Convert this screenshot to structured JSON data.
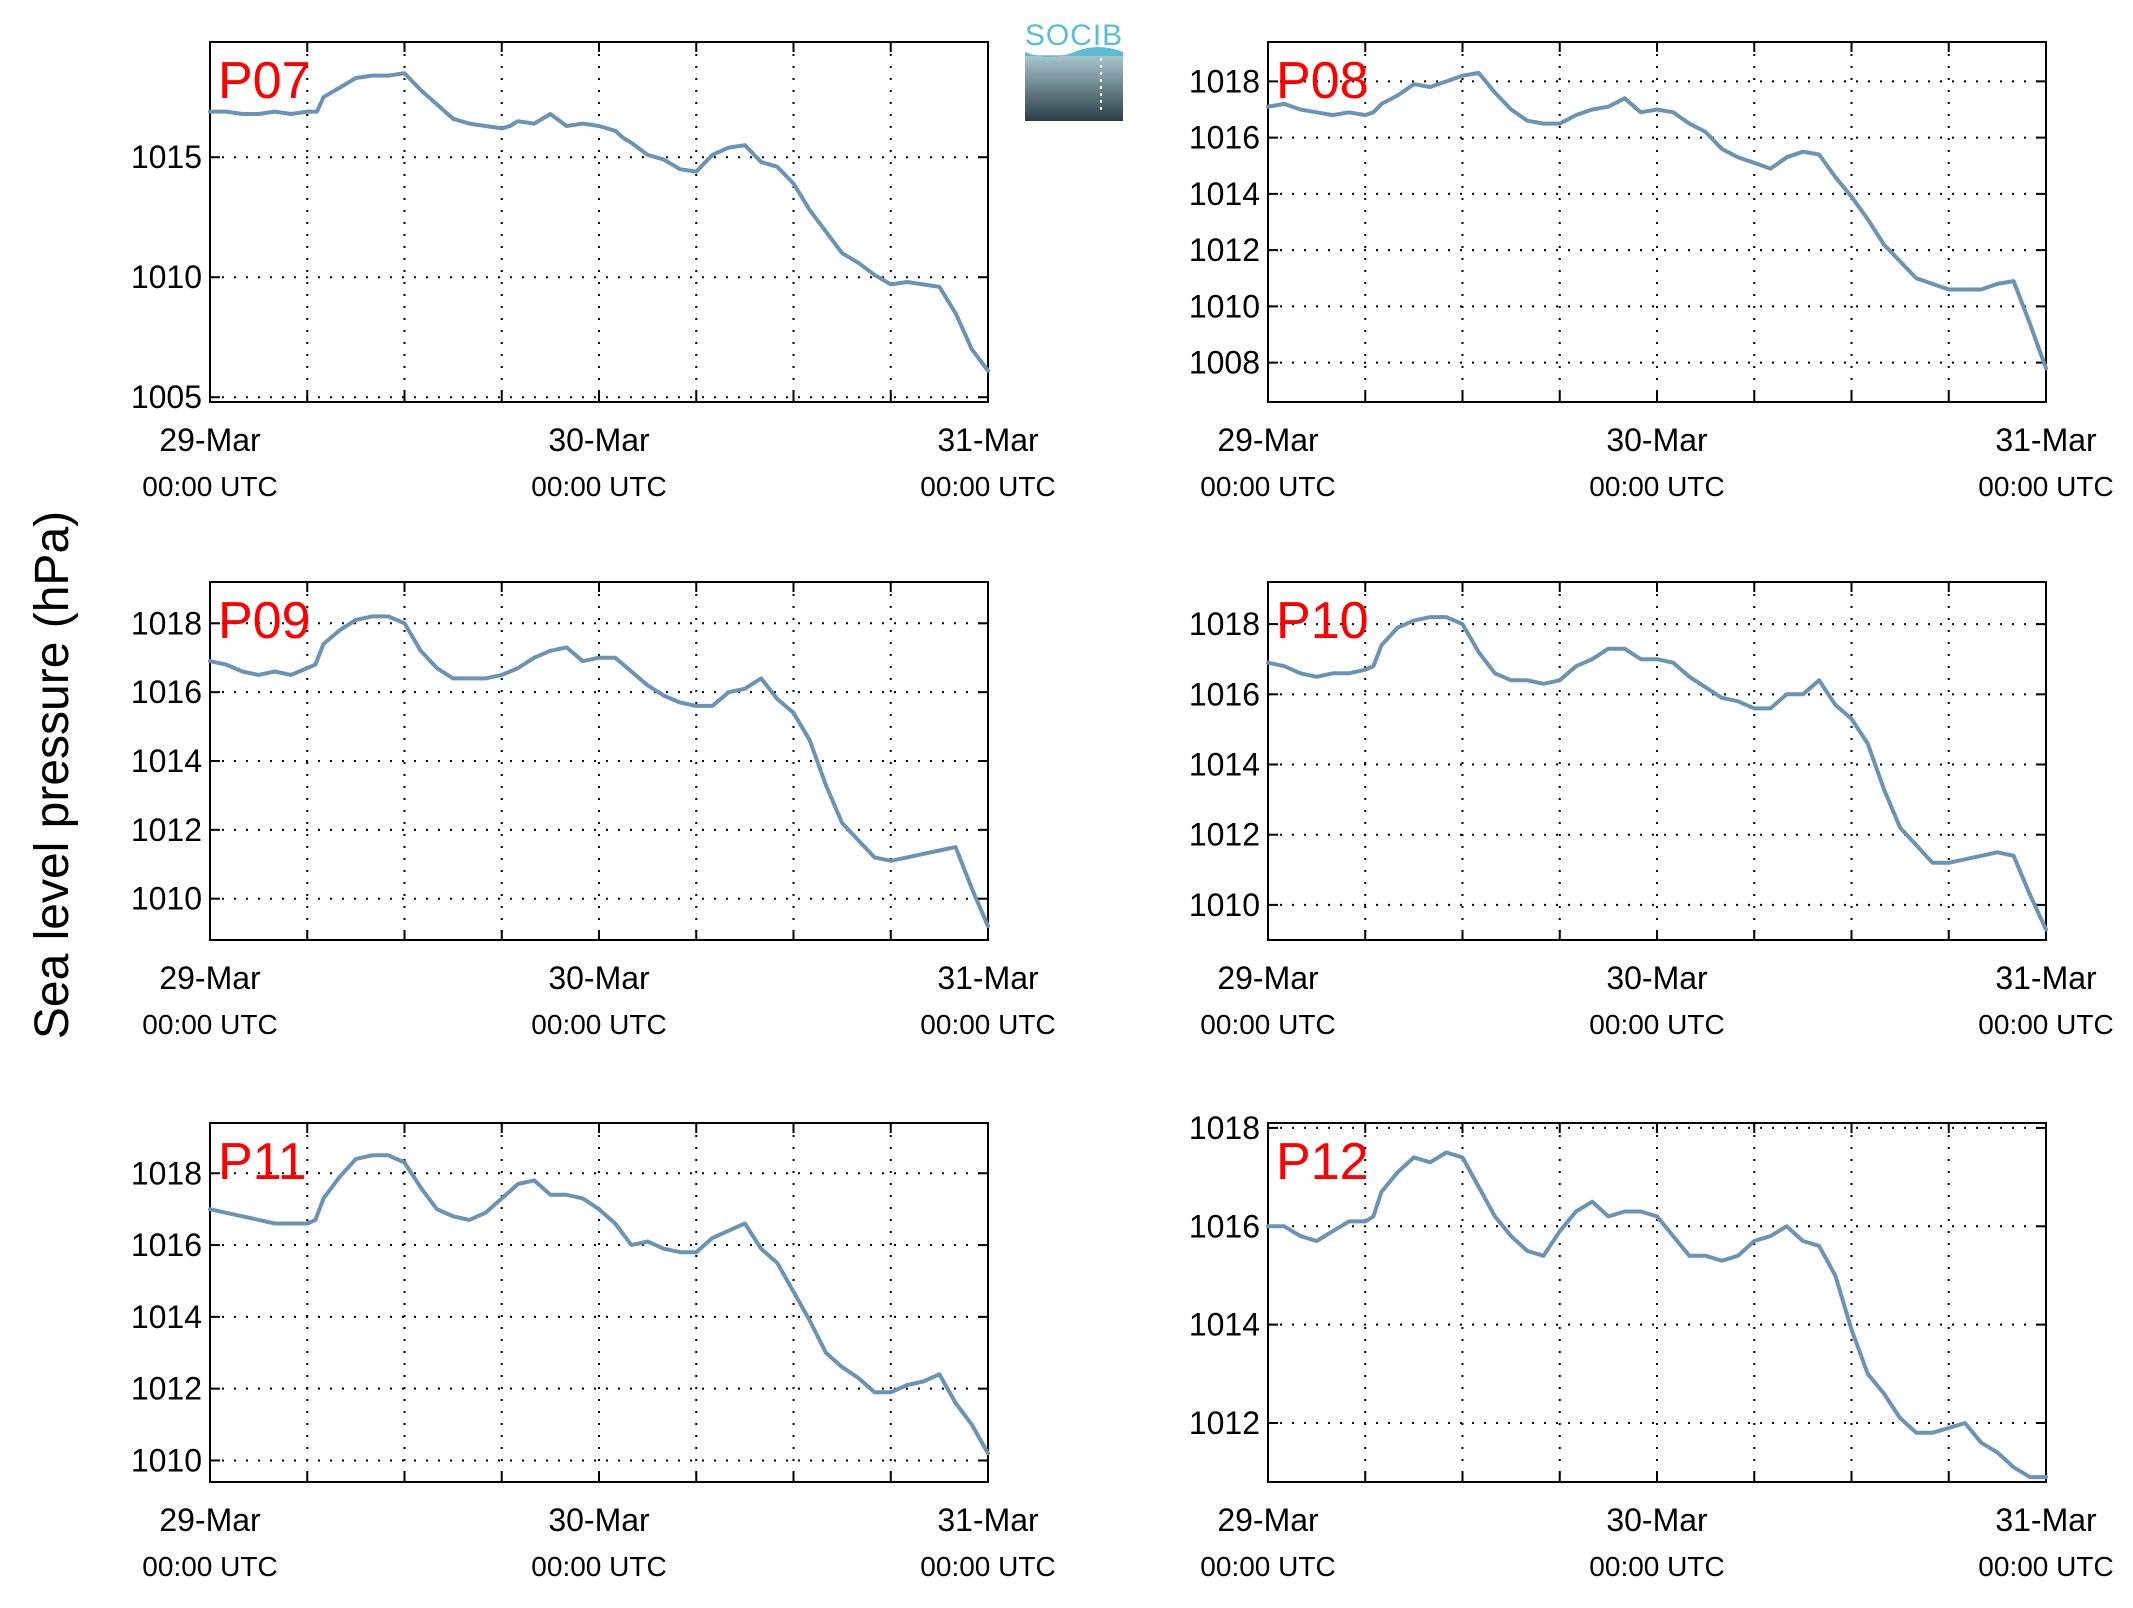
{
  "figure": {
    "ylabel": "Sea level pressure (hPa)",
    "logo": {
      "text": "SOCIB"
    },
    "line_color": "#6b93b5",
    "label_color": "#ff0000"
  },
  "chart_data": [
    {
      "type": "line",
      "label": "P07",
      "ylim": [
        1004.8,
        1019.8
      ],
      "yticks": [
        1005,
        1010,
        1015
      ],
      "xticks": [
        {
          "x": 0,
          "label": "29-Mar",
          "sub": "00:00 UTC"
        },
        {
          "x": 24,
          "label": "30-Mar",
          "sub": "00:00 UTC"
        },
        {
          "x": 48,
          "label": "31-Mar",
          "sub": "00:00 UTC"
        }
      ],
      "xlim": [
        0,
        48
      ],
      "grid": true,
      "series": [
        {
          "x": [
            0,
            1,
            2,
            3,
            4,
            5,
            6,
            6.6,
            7,
            8,
            9,
            10,
            11,
            12,
            13,
            14,
            15,
            16,
            17,
            18,
            18.5,
            19,
            20,
            21,
            22,
            23,
            24,
            25,
            25.5,
            26,
            27,
            28,
            29,
            30,
            31,
            32,
            33,
            34,
            35,
            36,
            37,
            38,
            39,
            40,
            41,
            42,
            43,
            44,
            45,
            46,
            47,
            48
          ],
          "values": [
            1016.9,
            1016.9,
            1016.8,
            1016.8,
            1016.9,
            1016.8,
            1016.9,
            1016.9,
            1017.5,
            1017.9,
            1018.3,
            1018.4,
            1018.4,
            1018.5,
            1017.8,
            1017.2,
            1016.6,
            1016.4,
            1016.3,
            1016.2,
            1016.3,
            1016.5,
            1016.4,
            1016.8,
            1016.3,
            1016.4,
            1016.3,
            1016.1,
            1015.8,
            1015.6,
            1015.1,
            1014.9,
            1014.5,
            1014.4,
            1015.1,
            1015.4,
            1015.5,
            1014.8,
            1014.6,
            1013.9,
            1012.8,
            1011.9,
            1011.0,
            1010.6,
            1010.1,
            1009.7,
            1009.8,
            1009.7,
            1009.6,
            1008.5,
            1007.0,
            1006.1
          ]
        }
      ]
    },
    {
      "type": "line",
      "label": "P08",
      "ylim": [
        1006.6,
        1019.4
      ],
      "yticks": [
        1008,
        1010,
        1012,
        1014,
        1016,
        1018
      ],
      "xticks": [
        {
          "x": 0,
          "label": "29-Mar",
          "sub": "00:00 UTC"
        },
        {
          "x": 24,
          "label": "30-Mar",
          "sub": "00:00 UTC"
        },
        {
          "x": 48,
          "label": "31-Mar",
          "sub": "00:00 UTC"
        }
      ],
      "xlim": [
        0,
        48
      ],
      "grid": true,
      "series": [
        {
          "x": [
            0,
            1,
            2,
            3,
            4,
            5,
            6,
            6.5,
            7,
            8,
            9,
            10,
            11,
            12,
            13,
            14,
            15,
            16,
            17,
            18,
            19,
            20,
            21,
            22,
            23,
            24,
            25,
            26,
            27,
            28,
            29,
            30,
            31,
            32,
            33,
            34,
            35,
            36,
            37,
            38,
            39,
            40,
            41,
            42,
            43,
            44,
            45,
            46,
            47,
            48
          ],
          "values": [
            1017.1,
            1017.2,
            1017.0,
            1016.9,
            1016.8,
            1016.9,
            1016.8,
            1016.9,
            1017.2,
            1017.5,
            1017.9,
            1017.8,
            1018.0,
            1018.2,
            1018.3,
            1017.6,
            1017.0,
            1016.6,
            1016.5,
            1016.5,
            1016.8,
            1017.0,
            1017.1,
            1017.4,
            1016.9,
            1017.0,
            1016.9,
            1016.5,
            1016.2,
            1015.6,
            1015.3,
            1015.1,
            1014.9,
            1015.3,
            1015.5,
            1015.4,
            1014.6,
            1013.9,
            1013.1,
            1012.2,
            1011.6,
            1011.0,
            1010.8,
            1010.6,
            1010.6,
            1010.6,
            1010.8,
            1010.9,
            1009.4,
            1007.8
          ]
        }
      ]
    },
    {
      "type": "line",
      "label": "P09",
      "ylim": [
        1008.8,
        1019.2
      ],
      "yticks": [
        1010,
        1012,
        1014,
        1016,
        1018
      ],
      "xticks": [
        {
          "x": 0,
          "label": "29-Mar",
          "sub": "00:00 UTC"
        },
        {
          "x": 24,
          "label": "30-Mar",
          "sub": "00:00 UTC"
        },
        {
          "x": 48,
          "label": "31-Mar",
          "sub": "00:00 UTC"
        }
      ],
      "xlim": [
        0,
        48
      ],
      "grid": true,
      "series": [
        {
          "x": [
            0,
            1,
            2,
            3,
            4,
            5,
            6,
            6.5,
            7,
            8,
            9,
            10,
            11,
            12,
            13,
            14,
            15,
            16,
            17,
            18,
            19,
            20,
            21,
            22,
            23,
            24,
            25,
            26,
            27,
            28,
            29,
            30,
            31,
            32,
            33,
            34,
            35,
            36,
            37,
            38,
            39,
            40,
            41,
            42,
            43,
            44,
            45,
            46,
            47,
            48
          ],
          "values": [
            1016.9,
            1016.8,
            1016.6,
            1016.5,
            1016.6,
            1016.5,
            1016.7,
            1016.8,
            1017.4,
            1017.8,
            1018.1,
            1018.2,
            1018.2,
            1018.0,
            1017.2,
            1016.7,
            1016.4,
            1016.4,
            1016.4,
            1016.5,
            1016.7,
            1017.0,
            1017.2,
            1017.3,
            1016.9,
            1017.0,
            1017.0,
            1016.6,
            1016.2,
            1015.9,
            1015.7,
            1015.6,
            1015.6,
            1016.0,
            1016.1,
            1016.4,
            1015.8,
            1015.4,
            1014.6,
            1013.3,
            1012.2,
            1011.7,
            1011.2,
            1011.1,
            1011.2,
            1011.3,
            1011.4,
            1011.5,
            1010.3,
            1009.2
          ]
        }
      ]
    },
    {
      "type": "line",
      "label": "P10",
      "ylim": [
        1009.0,
        1019.2
      ],
      "yticks": [
        1010,
        1012,
        1014,
        1016,
        1018
      ],
      "xticks": [
        {
          "x": 0,
          "label": "29-Mar",
          "sub": "00:00 UTC"
        },
        {
          "x": 24,
          "label": "30-Mar",
          "sub": "00:00 UTC"
        },
        {
          "x": 48,
          "label": "31-Mar",
          "sub": "00:00 UTC"
        }
      ],
      "xlim": [
        0,
        48
      ],
      "grid": true,
      "series": [
        {
          "x": [
            0,
            1,
            2,
            3,
            4,
            5,
            6,
            6.5,
            7,
            8,
            9,
            10,
            11,
            12,
            13,
            14,
            15,
            16,
            17,
            18,
            19,
            20,
            21,
            22,
            23,
            24,
            25,
            26,
            27,
            28,
            29,
            30,
            31,
            32,
            33,
            34,
            35,
            36,
            37,
            38,
            39,
            40,
            41,
            42,
            43,
            44,
            45,
            46,
            47,
            48
          ],
          "values": [
            1016.9,
            1016.8,
            1016.6,
            1016.5,
            1016.6,
            1016.6,
            1016.7,
            1016.8,
            1017.4,
            1017.9,
            1018.1,
            1018.2,
            1018.2,
            1018.0,
            1017.2,
            1016.6,
            1016.4,
            1016.4,
            1016.3,
            1016.4,
            1016.8,
            1017.0,
            1017.3,
            1017.3,
            1017.0,
            1017.0,
            1016.9,
            1016.5,
            1016.2,
            1015.9,
            1015.8,
            1015.6,
            1015.6,
            1016.0,
            1016.0,
            1016.4,
            1015.7,
            1015.3,
            1014.6,
            1013.3,
            1012.2,
            1011.7,
            1011.2,
            1011.2,
            1011.3,
            1011.4,
            1011.5,
            1011.4,
            1010.3,
            1009.3
          ]
        }
      ]
    },
    {
      "type": "line",
      "label": "P11",
      "ylim": [
        1009.4,
        1019.4
      ],
      "yticks": [
        1010,
        1012,
        1014,
        1016,
        1018
      ],
      "xticks": [
        {
          "x": 0,
          "label": "29-Mar",
          "sub": "00:00 UTC"
        },
        {
          "x": 24,
          "label": "30-Mar",
          "sub": "00:00 UTC"
        },
        {
          "x": 48,
          "label": "31-Mar",
          "sub": "00:00 UTC"
        }
      ],
      "xlim": [
        0,
        48
      ],
      "grid": true,
      "series": [
        {
          "x": [
            0,
            1,
            2,
            3,
            4,
            5,
            6,
            6.5,
            7,
            8,
            9,
            10,
            11,
            12,
            13,
            14,
            15,
            16,
            17,
            18,
            19,
            20,
            21,
            22,
            23,
            24,
            25,
            26,
            27,
            28,
            29,
            30,
            31,
            32,
            33,
            34,
            35,
            36,
            37,
            38,
            39,
            40,
            41,
            42,
            43,
            44,
            45,
            46,
            47,
            48
          ],
          "values": [
            1017.0,
            1016.9,
            1016.8,
            1016.7,
            1016.6,
            1016.6,
            1016.6,
            1016.7,
            1017.3,
            1017.9,
            1018.4,
            1018.5,
            1018.5,
            1018.3,
            1017.6,
            1017.0,
            1016.8,
            1016.7,
            1016.9,
            1017.3,
            1017.7,
            1017.8,
            1017.4,
            1017.4,
            1017.3,
            1017.0,
            1016.6,
            1016.0,
            1016.1,
            1015.9,
            1015.8,
            1015.8,
            1016.2,
            1016.4,
            1016.6,
            1015.9,
            1015.5,
            1014.7,
            1013.9,
            1013.0,
            1012.6,
            1012.3,
            1011.9,
            1011.9,
            1012.1,
            1012.2,
            1012.4,
            1011.6,
            1011.0,
            1010.2
          ]
        }
      ]
    },
    {
      "type": "line",
      "label": "P12",
      "ylim": [
        1010.8,
        1018.1
      ],
      "yticks": [
        1012,
        1014,
        1016,
        1018
      ],
      "xticks": [
        {
          "x": 0,
          "label": "29-Mar",
          "sub": "00:00 UTC"
        },
        {
          "x": 24,
          "label": "30-Mar",
          "sub": "00:00 UTC"
        },
        {
          "x": 48,
          "label": "31-Mar",
          "sub": "00:00 UTC"
        }
      ],
      "xlim": [
        0,
        48
      ],
      "grid": true,
      "series": [
        {
          "x": [
            0,
            1,
            2,
            3,
            4,
            5,
            6,
            6.5,
            7,
            8,
            9,
            10,
            11,
            12,
            13,
            14,
            15,
            16,
            17,
            18,
            19,
            20,
            21,
            22,
            23,
            24,
            25,
            26,
            27,
            28,
            29,
            30,
            31,
            32,
            33,
            34,
            35,
            36,
            37,
            38,
            39,
            40,
            41,
            42,
            43,
            44,
            45,
            46,
            47,
            48
          ],
          "values": [
            1016.0,
            1016.0,
            1015.8,
            1015.7,
            1015.9,
            1016.1,
            1016.1,
            1016.2,
            1016.7,
            1017.1,
            1017.4,
            1017.3,
            1017.5,
            1017.4,
            1016.8,
            1016.2,
            1015.8,
            1015.5,
            1015.4,
            1015.9,
            1016.3,
            1016.5,
            1016.2,
            1016.3,
            1016.3,
            1016.2,
            1015.8,
            1015.4,
            1015.4,
            1015.3,
            1015.4,
            1015.7,
            1015.8,
            1016.0,
            1015.7,
            1015.6,
            1015.0,
            1013.9,
            1013.0,
            1012.6,
            1012.1,
            1011.8,
            1011.8,
            1011.9,
            1012.0,
            1011.6,
            1011.4,
            1011.1,
            1010.9,
            1010.9
          ]
        }
      ]
    }
  ]
}
